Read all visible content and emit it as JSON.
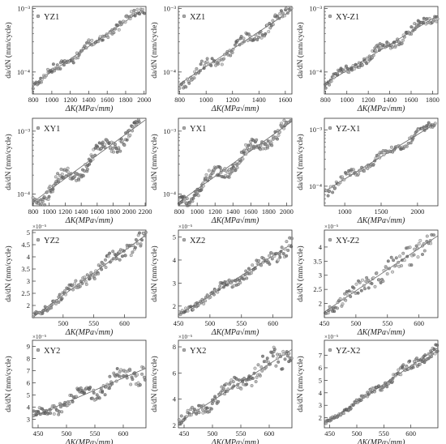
{
  "chart_data": [
    {
      "type": "scatter",
      "legend": "YZ1",
      "ylabel": "da/dN (mm/cycle)",
      "xlabel": "ΔK(MPa√mm)",
      "scale": "log",
      "multiplier": "",
      "xlim": [
        790,
        2020
      ],
      "xticks": [
        800,
        1000,
        1200,
        1400,
        1600,
        1800,
        2000
      ],
      "ylim": [
        4.5e-05,
        0.00108
      ],
      "ylabels": [
        {
          "v": 0.0001,
          "t": "10⁻⁴"
        },
        {
          "v": 0.001,
          "t": "10⁻³"
        }
      ],
      "fit": [
        [
          800,
          6.4e-05
        ],
        [
          2000,
          0.001
        ]
      ],
      "n": 110,
      "noise": 0.12,
      "wave": 0.04,
      "seed": 11
    },
    {
      "type": "scatter",
      "legend": "XZ1",
      "ylabel": "da/dN (mm/cycle)",
      "xlabel": "ΔK(MPa√mm)",
      "scale": "log",
      "multiplier": "",
      "xlim": [
        790,
        1650
      ],
      "xticks": [
        800,
        1000,
        1200,
        1400,
        1600
      ],
      "ylim": [
        4.5e-05,
        0.00108
      ],
      "ylabels": [
        {
          "v": 0.0001,
          "t": "10⁻⁴"
        },
        {
          "v": 0.001,
          "t": "10⁻³"
        }
      ],
      "fit": [
        [
          800,
          6.5e-05
        ],
        [
          1650,
          0.00095
        ]
      ],
      "n": 105,
      "noise": 0.14,
      "wave": 0.06,
      "seed": 23
    },
    {
      "type": "scatter",
      "legend": "XY-Z1",
      "ylabel": "da/dN (mm/cycle)",
      "xlabel": "ΔK(MPa√mm)",
      "scale": "log",
      "multiplier": "",
      "xlim": [
        790,
        1850
      ],
      "xticks": [
        800,
        1000,
        1200,
        1400,
        1600,
        1800
      ],
      "ylim": [
        4.5e-05,
        0.00108
      ],
      "ylabels": [
        {
          "v": 0.0001,
          "t": "10⁻⁴"
        },
        {
          "v": 0.001,
          "t": "10⁻³"
        }
      ],
      "fit": [
        [
          800,
          6.6e-05
        ],
        [
          1850,
          0.00078
        ]
      ],
      "n": 130,
      "noise": 0.12,
      "wave": 0.05,
      "seed": 37
    },
    {
      "type": "scatter",
      "legend": "XY1",
      "ylabel": "da/dN (mm/cycle)",
      "xlabel": "ΔK(MPa√mm)",
      "scale": "log",
      "multiplier": "",
      "xlim": [
        790,
        2210
      ],
      "xticks": [
        800,
        1000,
        1200,
        1400,
        1600,
        1800,
        2000,
        2200
      ],
      "ylim": [
        6.5e-05,
        0.0016
      ],
      "ylabels": [
        {
          "v": 0.0001,
          "t": "10⁻⁴"
        },
        {
          "v": 0.001,
          "t": "10⁻³"
        }
      ],
      "fit": [
        [
          800,
          7.5e-05
        ],
        [
          2200,
          0.0015
        ]
      ],
      "n": 160,
      "noise": 0.17,
      "wave": 0.12,
      "seed": 41
    },
    {
      "type": "scatter",
      "legend": "YX1",
      "ylabel": "da/dN (mm/cycle)",
      "xlabel": "ΔK(MPa√mm)",
      "scale": "log",
      "multiplier": "",
      "xlim": [
        790,
        2060
      ],
      "xticks": [
        800,
        1000,
        1200,
        1400,
        1600,
        1800,
        2000
      ],
      "ylim": [
        6.5e-05,
        0.0016
      ],
      "ylabels": [
        {
          "v": 0.0001,
          "t": "10⁻⁴"
        },
        {
          "v": 0.001,
          "t": "10⁻³"
        }
      ],
      "fit": [
        [
          800,
          7.5e-05
        ],
        [
          2050,
          0.0014
        ]
      ],
      "n": 160,
      "noise": 0.16,
      "wave": 0.1,
      "seed": 53
    },
    {
      "type": "scatter",
      "legend": "YZ-X1",
      "ylabel": "da/dN (mm/cycle)",
      "xlabel": "ΔK(MPa√mm)",
      "scale": "log",
      "multiplier": "",
      "xlim": [
        720,
        2280
      ],
      "xticks": [
        1000,
        1500,
        2000
      ],
      "ylim": [
        4.5e-05,
        0.0016
      ],
      "ylabels": [
        {
          "v": 0.0001,
          "t": "10⁻⁴"
        },
        {
          "v": 0.001,
          "t": "10⁻³"
        }
      ],
      "fit": [
        [
          750,
          8.5e-05
        ],
        [
          2250,
          0.0013
        ]
      ],
      "n": 100,
      "noise": 0.13,
      "wave": 0.05,
      "seed": 61
    },
    {
      "type": "scatter",
      "legend": "YZ2",
      "ylabel": "da/dN (mm/cycle)",
      "xlabel": "ΔK(MPa√mm)",
      "scale": "linear",
      "multiplier": "×10⁻⁵",
      "xlim": [
        450,
        635
      ],
      "xticks": [
        500,
        550,
        600
      ],
      "ylim": [
        1.5,
        5.1
      ],
      "ylabels": [
        {
          "v": 2,
          "t": "2"
        },
        {
          "v": 2.5,
          "t": "2.5"
        },
        {
          "v": 3,
          "t": "3"
        },
        {
          "v": 3.5,
          "t": "3.5"
        },
        {
          "v": 4,
          "t": "4"
        },
        {
          "v": 4.5,
          "t": "4.5"
        },
        {
          "v": 5,
          "t": "5"
        }
      ],
      "fit": [
        [
          450,
          1.5
        ],
        [
          635,
          4.9
        ]
      ],
      "n": 120,
      "noise": 0.08,
      "wave": 0.03,
      "seed": 71
    },
    {
      "type": "scatter",
      "legend": "XZ2",
      "ylabel": "da/dN (mm/cycle)",
      "xlabel": "ΔK(MPa√mm)",
      "scale": "linear",
      "multiplier": "×10⁻⁵",
      "xlim": [
        450,
        630
      ],
      "xticks": [
        450,
        500,
        550,
        600
      ],
      "ylim": [
        1.5,
        5.3
      ],
      "ylabels": [
        {
          "v": 2,
          "t": "2"
        },
        {
          "v": 3,
          "t": "3"
        },
        {
          "v": 4,
          "t": "4"
        },
        {
          "v": 5,
          "t": "5"
        }
      ],
      "fit": [
        [
          450,
          1.6
        ],
        [
          630,
          4.7
        ]
      ],
      "n": 120,
      "noise": 0.08,
      "wave": 0.04,
      "seed": 83
    },
    {
      "type": "scatter",
      "legend": "XY-Z2",
      "ylabel": "da/dN (mm/cycle)",
      "xlabel": "ΔK(MPa√mm)",
      "scale": "linear",
      "multiplier": "×10⁻⁵",
      "xlim": [
        450,
        630
      ],
      "xticks": [
        450,
        500,
        550,
        600
      ],
      "ylim": [
        1.5,
        4.6
      ],
      "ylabels": [
        {
          "v": 2,
          "t": "2"
        },
        {
          "v": 2.5,
          "t": "2.5"
        },
        {
          "v": 3,
          "t": "3"
        },
        {
          "v": 3.5,
          "t": "3.5"
        },
        {
          "v": 4,
          "t": "4"
        }
      ],
      "fit": [
        [
          450,
          1.7
        ],
        [
          630,
          4.4
        ]
      ],
      "n": 100,
      "noise": 0.11,
      "wave": 0.03,
      "seed": 97
    },
    {
      "type": "scatter",
      "legend": "XY2",
      "ylabel": "da/dN (mm/cycle)",
      "xlabel": "ΔK(MPa√mm)",
      "scale": "linear",
      "multiplier": "×10⁻⁵",
      "xlim": [
        440,
        640
      ],
      "xticks": [
        450,
        500,
        550,
        600
      ],
      "ylim": [
        2.3,
        9.5
      ],
      "ylabels": [
        {
          "v": 3,
          "t": "3"
        },
        {
          "v": 4,
          "t": "4"
        },
        {
          "v": 5,
          "t": "5"
        },
        {
          "v": 6,
          "t": "6"
        },
        {
          "v": 7,
          "t": "7"
        },
        {
          "v": 8,
          "t": "8"
        },
        {
          "v": 9,
          "t": "9"
        }
      ],
      "fit": [
        [
          440,
          3.2
        ],
        [
          640,
          7.2
        ]
      ],
      "n": 130,
      "noise": 0.13,
      "wave": 0.07,
      "seed": 101
    },
    {
      "type": "scatter",
      "legend": "YX2",
      "ylabel": "da/dN (mm/cycle)",
      "xlabel": "ΔK(MPa√mm)",
      "scale": "linear",
      "multiplier": "×10⁻⁵",
      "xlim": [
        440,
        640
      ],
      "xticks": [
        450,
        500,
        550,
        600
      ],
      "ylim": [
        1.8,
        8.5
      ],
      "ylabels": [
        {
          "v": 2,
          "t": "2"
        },
        {
          "v": 4,
          "t": "4"
        },
        {
          "v": 6,
          "t": "6"
        },
        {
          "v": 8,
          "t": "8"
        }
      ],
      "fit": [
        [
          440,
          2.2
        ],
        [
          640,
          7.8
        ]
      ],
      "n": 130,
      "noise": 0.13,
      "wave": 0.08,
      "seed": 113
    },
    {
      "type": "scatter",
      "legend": "YZ-X2",
      "ylabel": "da/dN (mm/cycle)",
      "xlabel": "ΔK(MPa√mm)",
      "scale": "linear",
      "multiplier": "×10⁻⁵",
      "xlim": [
        440,
        650
      ],
      "xticks": [
        450,
        500,
        550,
        600
      ],
      "ylim": [
        1.2,
        8.2
      ],
      "ylabels": [
        {
          "v": 2,
          "t": "2"
        },
        {
          "v": 3,
          "t": "3"
        },
        {
          "v": 4,
          "t": "4"
        },
        {
          "v": 5,
          "t": "5"
        },
        {
          "v": 6,
          "t": "6"
        },
        {
          "v": 7,
          "t": "7"
        }
      ],
      "fit": [
        [
          440,
          1.5
        ],
        [
          650,
          7.6
        ]
      ],
      "n": 140,
      "noise": 0.07,
      "wave": 0.03,
      "seed": 127
    }
  ]
}
